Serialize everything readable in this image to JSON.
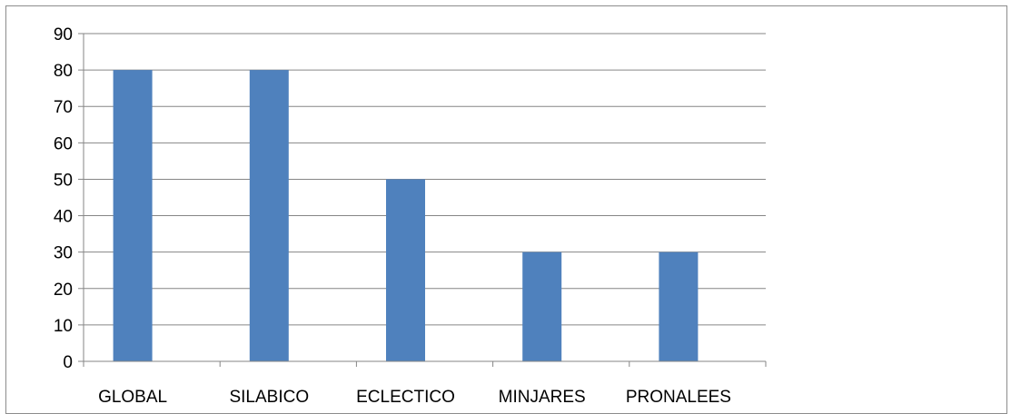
{
  "chart_data": {
    "type": "bar",
    "title": "",
    "xlabel": "",
    "ylabel": "",
    "categories": [
      "GLOBAL",
      "SILABICO",
      "ECLECTICO",
      "MINJARES",
      "PRONALEES"
    ],
    "series": [
      {
        "values": [
          80,
          80,
          50,
          30,
          30
        ]
      }
    ],
    "ylim": [
      0,
      90
    ],
    "yticks": [
      "0",
      "10",
      "20",
      "30",
      "40",
      "50",
      "60",
      "70",
      "80",
      "90"
    ],
    "grid": true,
    "legend": "none",
    "colors": {
      "bar": "#4f81bd",
      "grid": "#868686",
      "axis": "#868686",
      "frame": "#8c8c8c"
    }
  }
}
